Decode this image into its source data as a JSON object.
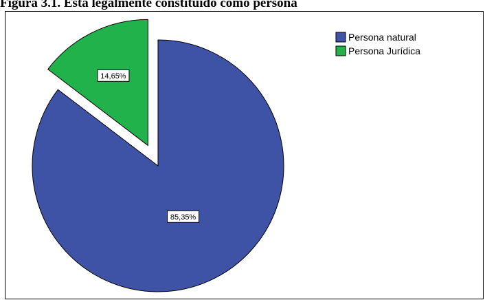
{
  "figure_caption": "Figura 3.1. Está legalmente constituido como persona",
  "chart_data": {
    "type": "pie",
    "title": "",
    "slices": [
      {
        "label": "Persona natural",
        "value": 85.35,
        "value_label": "85,35%",
        "color": "#3e53a6",
        "exploded": false
      },
      {
        "label": "Persona Jurídica",
        "value": 14.65,
        "value_label": "14,65%",
        "color": "#21b24b",
        "exploded": true
      }
    ],
    "legend_position": "top-right"
  }
}
